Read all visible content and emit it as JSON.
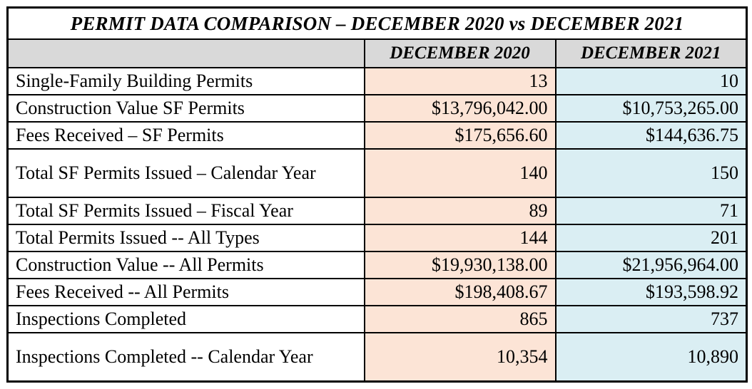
{
  "title": "PERMIT DATA COMPARISON – DECEMBER 2020 vs DECEMBER 2021",
  "columns": {
    "metric": "",
    "dec2020": "DECEMBER 2020",
    "dec2021": "DECEMBER 2021"
  },
  "colors": {
    "dec2020_bg": "#fce4d6",
    "dec2021_bg": "#daeef3",
    "header_bg": "#d9d9d9",
    "border": "#000000"
  },
  "rows": [
    {
      "label": "Single-Family Building Permits",
      "dec2020": "13",
      "dec2021": "10"
    },
    {
      "label": "Construction Value SF Permits",
      "dec2020": "$13,796,042.00",
      "dec2021": "$10,753,265.00"
    },
    {
      "label": "Fees Received – SF Permits",
      "dec2020": "$175,656.60",
      "dec2021": "$144,636.75"
    },
    {
      "label": "Total SF Permits Issued – Calendar Year",
      "dec2020": "140",
      "dec2021": "150"
    },
    {
      "label": "Total SF Permits Issued – Fiscal Year",
      "dec2020": "89",
      "dec2021": "71"
    },
    {
      "label": "Total Permits Issued -- All Types",
      "dec2020": "144",
      "dec2021": "201"
    },
    {
      "label": "Construction Value -- All Permits",
      "dec2020": "$19,930,138.00",
      "dec2021": "$21,956,964.00"
    },
    {
      "label": "Fees Received -- All Permits",
      "dec2020": "$198,408.67",
      "dec2021": "$193,598.92"
    },
    {
      "label": "Inspections Completed",
      "dec2020": "865",
      "dec2021": "737"
    },
    {
      "label": "Inspections Completed -- Calendar Year",
      "dec2020": "10,354",
      "dec2021": "10,890"
    }
  ]
}
